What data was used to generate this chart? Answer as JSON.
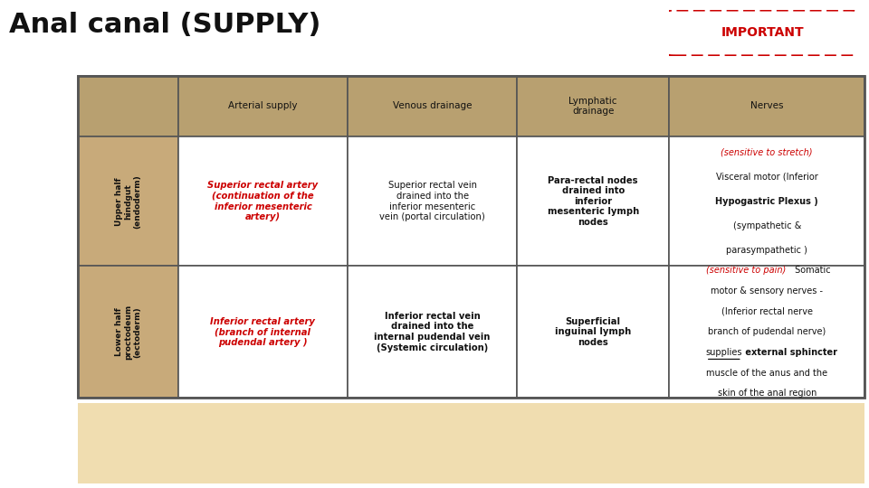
{
  "title": "Anal canal (SUPPLY)",
  "title_fontsize": 22,
  "important_text": "IMPORTANT",
  "bg_color": "#ffffff",
  "header_bg": "#b8a070",
  "row_bg": "#c8aa7a",
  "border_color": "#555555",
  "dark_red": "#cc0000",
  "col_labels": [
    "Arterial supply",
    "Venous drainage",
    "Lymphatic\ndrainage",
    "Nerves"
  ],
  "row_labels_upper": "Upper half\nhindgut\n(endoderm)",
  "row_labels_lower": "Lower half\nproctodeum\n(ectoderm)",
  "upper_arterial": "Superior rectal artery\n(continuation of the\ninferior mesenteric\nartery)",
  "upper_venous": "Superior rectal vein\ndrained into the\ninferior mesenteric\nvein (portal circulation)",
  "upper_lymph": "Para-rectal nodes\ndrained into\ninferior\nmesenteric lymph\nnodes",
  "lower_arterial": "Inferior rectal artery\n(branch of internal\npudendal artery )",
  "lower_venous": "Inferior rectal vein\ndrained into the\ninternal pudendal vein\n(Systemic circulation)",
  "lower_lymph": "Superficial\ninguinal lymph\nnodes"
}
